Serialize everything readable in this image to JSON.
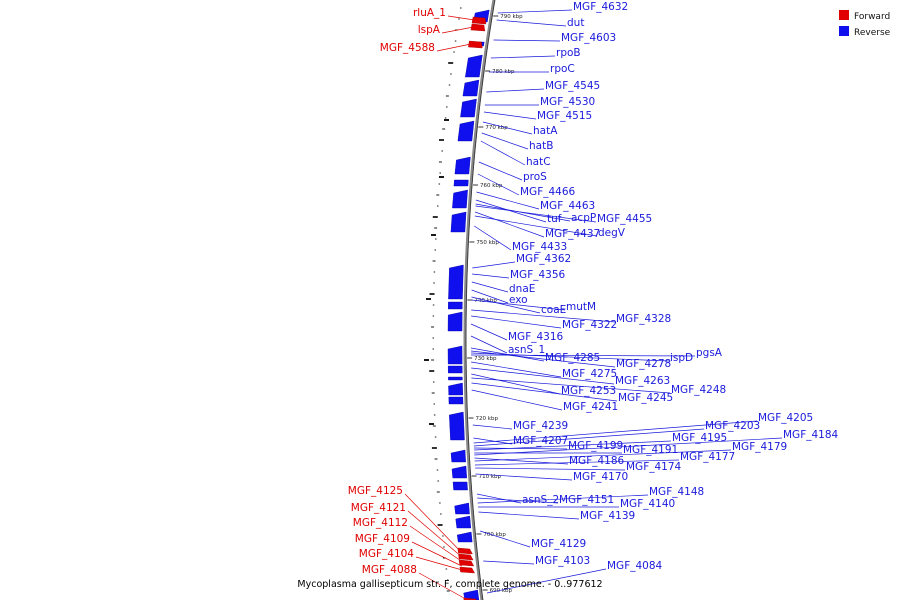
{
  "legend": {
    "forward": {
      "label": "Forward",
      "color": "#e00000"
    },
    "reverse": {
      "label": "Reverse",
      "color": "#1010ee"
    }
  },
  "caption": "Mycoplasma gallisepticum str. F, complete genome. - 0..977612",
  "ticks": [
    "790 kbp",
    "780 kbp",
    "770 kbp",
    "760 kbp",
    "750 kbp",
    "740 kbp",
    "730 kbp",
    "720 kbp",
    "710 kbp",
    "700 kbp",
    "690 kbp"
  ],
  "forward_genes": [
    "rluA_1",
    "lspA",
    "MGF_4588",
    "MGF_4125",
    "MGF_4121",
    "MGF_4112",
    "MGF_4109",
    "MGF_4104",
    "MGF_4088"
  ],
  "reverse_genes": [
    "MGF_4632",
    "dut",
    "MGF_4603",
    "rpoB",
    "rpoC",
    "MGF_4545",
    "MGF_4530",
    "MGF_4515",
    "hatA",
    "hatB",
    "hatC",
    "proS",
    "MGF_4466",
    "MGF_4463",
    "tuf",
    "acpP",
    "MGF_4455",
    "MGF_4437",
    "degV",
    "MGF_4433",
    "MGF_4362",
    "MGF_4356",
    "dnaE",
    "exo",
    "coaE",
    "mutM",
    "MGF_4328",
    "MGF_4322",
    "MGF_4316",
    "asnS_1",
    "MGF_4285",
    "MGF_4278",
    "ispD",
    "pgsA",
    "MGF_4275",
    "MGF_4263",
    "MGF_4253",
    "MGF_4248",
    "MGF_4245",
    "MGF_4241",
    "MGF_4239",
    "MGF_4207",
    "MGF_4205",
    "MGF_4203",
    "MGF_4199",
    "MGF_4195",
    "MGF_4191",
    "MGF_4184",
    "MGF_4186",
    "MGF_4179",
    "MGF_4177",
    "MGF_4174",
    "MGF_4170",
    "asnS_2",
    "MGF_4151",
    "MGF_4148",
    "MGF_4140",
    "MGF_4139",
    "MGF_4129",
    "MGF_4103",
    "MGF_4084"
  ]
}
